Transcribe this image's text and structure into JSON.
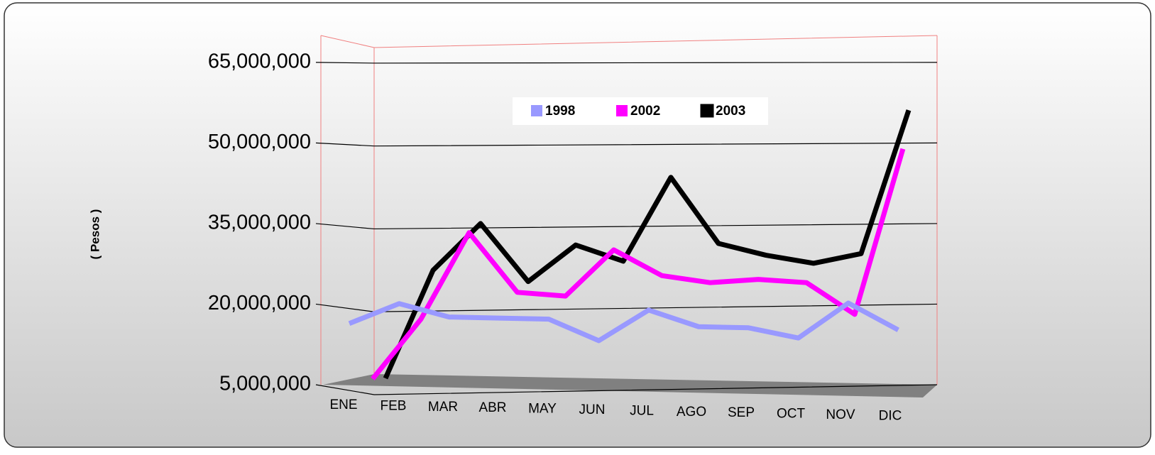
{
  "chart_data": {
    "type": "line",
    "y_label": "( Pesos )",
    "categories": [
      "ENE",
      "FEB",
      "MAR",
      "ABR",
      "MAY",
      "JUN",
      "JUL",
      "AGO",
      "SEP",
      "OCT",
      "NOV",
      "DIC"
    ],
    "series": [
      {
        "name": "1998",
        "color": "#9999ff",
        "values": [
          16400000,
          20100000,
          17600000,
          17400000,
          17200000,
          13200000,
          18900000,
          15800000,
          15600000,
          13700000,
          20200000,
          15200000
        ]
      },
      {
        "name": "2002",
        "color": "#ff00ff",
        "values": [
          6100000,
          17200000,
          33300000,
          22200000,
          21500000,
          30100000,
          25300000,
          24000000,
          24600000,
          24000000,
          18100000,
          48900000
        ]
      },
      {
        "name": "2003",
        "color": "#000000",
        "values": [
          6200000,
          26300000,
          35000000,
          24200000,
          31000000,
          28000000,
          43600000,
          31300000,
          29100000,
          27600000,
          29400000,
          56100000
        ]
      }
    ],
    "ylim": [
      5000000,
      70000000
    ],
    "yticks": [
      {
        "value": 5000000,
        "label": "5,000,000"
      },
      {
        "value": 20000000,
        "label": "20,000,000"
      },
      {
        "value": 35000000,
        "label": "35,000,000"
      },
      {
        "value": 50000000,
        "label": "50,000,000"
      },
      {
        "value": 65000000,
        "label": "65,000,000"
      }
    ],
    "grid": true
  }
}
